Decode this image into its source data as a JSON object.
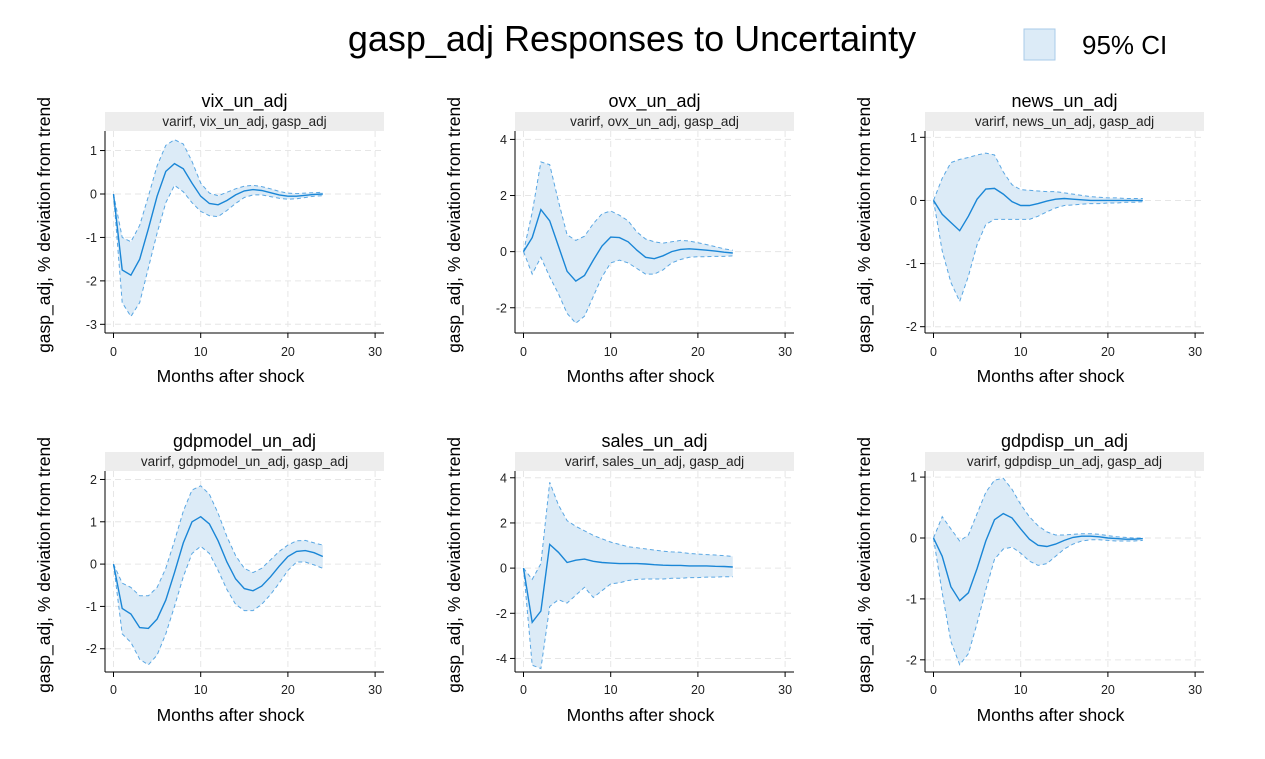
{
  "figure": {
    "title": "gasp_adj Responses to Uncertainty",
    "legend_label": "95% CI",
    "colors": {
      "line": "#1a86d6",
      "band": "#dcebf7",
      "band_edge": "#5aa7e3",
      "grid": "#e6e6e6",
      "strip": "#ededed"
    }
  },
  "chart_data": [
    {
      "type": "area",
      "panel_title": "vix_un_adj",
      "strip": "varirf, vix_un_adj, gasp_adj",
      "xlabel": "Months after shock",
      "ylabel": "gasp_adj, % deviation from trend",
      "xlim": [
        0,
        30
      ],
      "ylim": [
        -3.2,
        1.45
      ],
      "xticks": [
        "0",
        "10",
        "20",
        "30"
      ],
      "xtick_values": [
        0,
        10,
        20,
        30
      ],
      "yticks": [
        "-3",
        "-2",
        "-1",
        "0",
        "1"
      ],
      "ytick_values": [
        -3,
        -2,
        -1,
        0,
        1
      ],
      "x": [
        0,
        1,
        2,
        3,
        4,
        5,
        6,
        7,
        8,
        9,
        10,
        11,
        12,
        13,
        14,
        15,
        16,
        17,
        18,
        19,
        20,
        21,
        22,
        23,
        24
      ],
      "series": [
        {
          "name": "irf",
          "values": [
            0,
            -1.75,
            -1.87,
            -1.5,
            -0.8,
            -0.05,
            0.52,
            0.7,
            0.58,
            0.25,
            -0.05,
            -0.22,
            -0.25,
            -0.15,
            -0.02,
            0.07,
            0.1,
            0.08,
            0.03,
            -0.02,
            -0.05,
            -0.05,
            -0.03,
            -0.01,
            0
          ]
        },
        {
          "name": "upper",
          "values": [
            0,
            -1.0,
            -1.1,
            -0.72,
            -0.05,
            0.65,
            1.12,
            1.25,
            1.15,
            0.75,
            0.25,
            0.02,
            -0.04,
            0.04,
            0.12,
            0.18,
            0.2,
            0.17,
            0.12,
            0.06,
            0.02,
            0.01,
            0.02,
            0.03,
            0.04
          ]
        },
        {
          "name": "lower",
          "values": [
            0,
            -2.5,
            -2.82,
            -2.5,
            -1.7,
            -0.9,
            -0.2,
            0.2,
            0.05,
            -0.2,
            -0.4,
            -0.5,
            -0.52,
            -0.38,
            -0.22,
            -0.08,
            -0.02,
            -0.02,
            -0.06,
            -0.1,
            -0.12,
            -0.11,
            -0.08,
            -0.05,
            -0.04
          ]
        }
      ]
    },
    {
      "type": "area",
      "panel_title": "ovx_un_adj",
      "strip": "varirf, ovx_un_adj, gasp_adj",
      "xlabel": "Months after shock",
      "ylabel": "gasp_adj, % deviation from trend",
      "xlim": [
        0,
        30
      ],
      "ylim": [
        -2.9,
        4.3
      ],
      "xticks": [
        "0",
        "10",
        "20",
        "30"
      ],
      "xtick_values": [
        0,
        10,
        20,
        30
      ],
      "yticks": [
        "-2",
        "0",
        "2",
        "4"
      ],
      "ytick_values": [
        -2,
        0,
        2,
        4
      ],
      "x": [
        0,
        1,
        2,
        3,
        4,
        5,
        6,
        7,
        8,
        9,
        10,
        11,
        12,
        13,
        14,
        15,
        16,
        17,
        18,
        19,
        20,
        21,
        22,
        23,
        24
      ],
      "series": [
        {
          "name": "irf",
          "values": [
            0,
            0.5,
            1.5,
            1.1,
            0.2,
            -0.7,
            -1.05,
            -0.85,
            -0.3,
            0.2,
            0.52,
            0.5,
            0.35,
            0.05,
            -0.2,
            -0.25,
            -0.15,
            0,
            0.08,
            0.1,
            0.08,
            0.05,
            0.02,
            -0.02,
            -0.05
          ]
        },
        {
          "name": "upper",
          "values": [
            0,
            1.4,
            3.2,
            3.1,
            1.8,
            0.6,
            0.4,
            0.55,
            1.0,
            1.35,
            1.45,
            1.3,
            1.1,
            0.7,
            0.45,
            0.35,
            0.3,
            0.35,
            0.4,
            0.38,
            0.32,
            0.25,
            0.18,
            0.1,
            0.05
          ]
        },
        {
          "name": "lower",
          "values": [
            0,
            -0.8,
            -0.2,
            -0.9,
            -1.5,
            -2.2,
            -2.55,
            -2.3,
            -1.6,
            -0.9,
            -0.4,
            -0.3,
            -0.4,
            -0.6,
            -0.8,
            -0.8,
            -0.65,
            -0.4,
            -0.28,
            -0.2,
            -0.18,
            -0.18,
            -0.17,
            -0.17,
            -0.15
          ]
        }
      ]
    },
    {
      "type": "area",
      "panel_title": "news_un_adj",
      "strip": "varirf, news_un_adj, gasp_adj",
      "xlabel": "Months after shock",
      "ylabel": "gasp_adj, % deviation from trend",
      "xlim": [
        0,
        30
      ],
      "ylim": [
        -2.1,
        1.1
      ],
      "xticks": [
        "0",
        "10",
        "20",
        "30"
      ],
      "xtick_values": [
        0,
        10,
        20,
        30
      ],
      "yticks": [
        "-2",
        "-1",
        "0",
        "1"
      ],
      "ytick_values": [
        -2,
        -1,
        0,
        1
      ],
      "x": [
        0,
        1,
        2,
        3,
        4,
        5,
        6,
        7,
        8,
        9,
        10,
        11,
        12,
        13,
        14,
        15,
        16,
        17,
        18,
        19,
        20,
        21,
        22,
        23,
        24
      ],
      "series": [
        {
          "name": "irf",
          "values": [
            0,
            -0.22,
            -0.35,
            -0.48,
            -0.25,
            0.02,
            0.18,
            0.19,
            0.1,
            -0.02,
            -0.08,
            -0.08,
            -0.05,
            -0.01,
            0.02,
            0.03,
            0.02,
            0.01,
            0,
            0,
            0,
            0,
            0,
            0,
            0
          ]
        },
        {
          "name": "upper",
          "values": [
            0,
            0.35,
            0.6,
            0.65,
            0.68,
            0.72,
            0.75,
            0.72,
            0.45,
            0.25,
            0.17,
            0.16,
            0.15,
            0.14,
            0.14,
            0.12,
            0.1,
            0.08,
            0.06,
            0.05,
            0.04,
            0.04,
            0.03,
            0.03,
            0.03
          ]
        },
        {
          "name": "lower",
          "values": [
            0,
            -0.8,
            -1.3,
            -1.6,
            -1.2,
            -0.7,
            -0.38,
            -0.3,
            -0.3,
            -0.3,
            -0.3,
            -0.3,
            -0.25,
            -0.18,
            -0.12,
            -0.08,
            -0.07,
            -0.06,
            -0.05,
            -0.05,
            -0.04,
            -0.04,
            -0.03,
            -0.03,
            -0.02
          ]
        }
      ]
    },
    {
      "type": "area",
      "panel_title": "gdpmodel_un_adj",
      "strip": "varirf, gdpmodel_un_adj, gasp_adj",
      "xlabel": "Months after shock",
      "ylabel": "gasp_adj, % deviation from trend",
      "xlim": [
        0,
        30
      ],
      "ylim": [
        -2.55,
        2.2
      ],
      "xticks": [
        "0",
        "10",
        "20",
        "30"
      ],
      "xtick_values": [
        0,
        10,
        20,
        30
      ],
      "yticks": [
        "-2",
        "-1",
        "0",
        "1",
        "2"
      ],
      "ytick_values": [
        -2,
        -1,
        0,
        1,
        2
      ],
      "x": [
        0,
        1,
        2,
        3,
        4,
        5,
        6,
        7,
        8,
        9,
        10,
        11,
        12,
        13,
        14,
        15,
        16,
        17,
        18,
        19,
        20,
        21,
        22,
        23,
        24
      ],
      "series": [
        {
          "name": "irf",
          "values": [
            0,
            -1.05,
            -1.18,
            -1.5,
            -1.52,
            -1.3,
            -0.85,
            -0.2,
            0.5,
            1.0,
            1.12,
            0.95,
            0.55,
            0.05,
            -0.35,
            -0.58,
            -0.63,
            -0.52,
            -0.3,
            -0.05,
            0.18,
            0.3,
            0.32,
            0.27,
            0.18
          ]
        },
        {
          "name": "upper",
          "values": [
            0,
            -0.45,
            -0.55,
            -0.75,
            -0.75,
            -0.55,
            -0.1,
            0.55,
            1.25,
            1.75,
            1.85,
            1.65,
            1.2,
            0.65,
            0.2,
            -0.1,
            -0.2,
            -0.1,
            0.1,
            0.3,
            0.45,
            0.55,
            0.56,
            0.5,
            0.45
          ]
        },
        {
          "name": "lower",
          "values": [
            0,
            -1.65,
            -1.85,
            -2.25,
            -2.38,
            -2.15,
            -1.65,
            -1.0,
            -0.3,
            0.25,
            0.42,
            0.25,
            -0.15,
            -0.6,
            -0.95,
            -1.1,
            -1.1,
            -0.95,
            -0.72,
            -0.45,
            -0.15,
            0.05,
            0.05,
            -0.02,
            -0.1
          ]
        }
      ]
    },
    {
      "type": "area",
      "panel_title": "sales_un_adj",
      "strip": "varirf, sales_un_adj, gasp_adj",
      "xlabel": "Months after shock",
      "ylabel": "gasp_adj, % deviation from trend",
      "xlim": [
        0,
        30
      ],
      "ylim": [
        -4.6,
        4.3
      ],
      "xticks": [
        "0",
        "10",
        "20",
        "30"
      ],
      "xtick_values": [
        0,
        10,
        20,
        30
      ],
      "yticks": [
        "-4",
        "-2",
        "0",
        "2",
        "4"
      ],
      "ytick_values": [
        -4,
        -2,
        0,
        2,
        4
      ],
      "x": [
        0,
        1,
        2,
        3,
        4,
        5,
        6,
        7,
        8,
        9,
        10,
        11,
        12,
        13,
        14,
        15,
        16,
        17,
        18,
        19,
        20,
        21,
        22,
        23,
        24
      ],
      "series": [
        {
          "name": "irf",
          "values": [
            0,
            -2.4,
            -1.9,
            1.05,
            0.7,
            0.25,
            0.35,
            0.4,
            0.3,
            0.25,
            0.22,
            0.2,
            0.2,
            0.2,
            0.18,
            0.15,
            0.13,
            0.12,
            0.12,
            0.1,
            0.1,
            0.1,
            0.08,
            0.07,
            0.05
          ]
        },
        {
          "name": "upper",
          "values": [
            0,
            -0.5,
            0.2,
            3.8,
            2.8,
            2.1,
            1.85,
            1.65,
            1.45,
            1.3,
            1.15,
            1.05,
            0.95,
            0.9,
            0.85,
            0.8,
            0.75,
            0.72,
            0.7,
            0.65,
            0.62,
            0.6,
            0.58,
            0.55,
            0.52
          ]
        },
        {
          "name": "lower",
          "values": [
            0,
            -4.3,
            -4.45,
            -1.7,
            -1.4,
            -1.55,
            -1.2,
            -0.85,
            -1.3,
            -1.0,
            -0.7,
            -0.65,
            -0.55,
            -0.5,
            -0.48,
            -0.48,
            -0.48,
            -0.45,
            -0.45,
            -0.42,
            -0.42,
            -0.4,
            -0.4,
            -0.38,
            -0.38
          ]
        }
      ]
    },
    {
      "type": "area",
      "panel_title": "gdpdisp_un_adj",
      "strip": "varirf, gdpdisp_un_adj, gasp_adj",
      "xlabel": "Months after shock",
      "ylabel": "gasp_adj, % deviation from trend",
      "xlim": [
        0,
        30
      ],
      "ylim": [
        -2.2,
        1.1
      ],
      "xticks": [
        "0",
        "10",
        "20",
        "30"
      ],
      "xtick_values": [
        0,
        10,
        20,
        30
      ],
      "yticks": [
        "-2",
        "-1",
        "0",
        "1"
      ],
      "ytick_values": [
        -2,
        -1,
        0,
        1
      ],
      "x": [
        0,
        1,
        2,
        3,
        4,
        5,
        6,
        7,
        8,
        9,
        10,
        11,
        12,
        13,
        14,
        15,
        16,
        17,
        18,
        19,
        20,
        21,
        22,
        23,
        24
      ],
      "series": [
        {
          "name": "irf",
          "values": [
            0,
            -0.3,
            -0.8,
            -1.03,
            -0.9,
            -0.5,
            -0.05,
            0.3,
            0.4,
            0.33,
            0.15,
            -0.02,
            -0.12,
            -0.14,
            -0.1,
            -0.04,
            0.01,
            0.03,
            0.03,
            0.02,
            0,
            -0.01,
            -0.02,
            -0.02,
            -0.01
          ]
        },
        {
          "name": "upper",
          "values": [
            0,
            0.35,
            0.15,
            -0.05,
            0.05,
            0.4,
            0.75,
            0.95,
            0.98,
            0.8,
            0.55,
            0.35,
            0.2,
            0.1,
            0.05,
            0.05,
            0.06,
            0.07,
            0.07,
            0.06,
            0.04,
            0.02,
            0.01,
            0,
            0
          ]
        },
        {
          "name": "lower",
          "values": [
            0,
            -0.9,
            -1.7,
            -2.08,
            -1.9,
            -1.4,
            -0.85,
            -0.35,
            -0.18,
            -0.15,
            -0.25,
            -0.38,
            -0.45,
            -0.42,
            -0.3,
            -0.18,
            -0.1,
            -0.05,
            -0.03,
            -0.03,
            -0.04,
            -0.05,
            -0.05,
            -0.05,
            -0.04
          ]
        }
      ]
    }
  ]
}
